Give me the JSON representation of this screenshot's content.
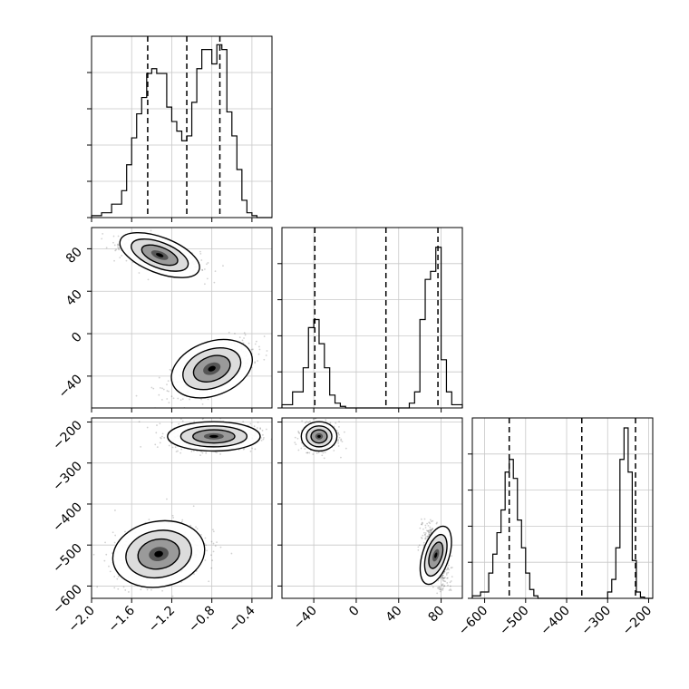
{
  "chart_data": {
    "type": "corner",
    "grid": true,
    "parameters": [
      {
        "range": [
          -2.0,
          -0.2
        ],
        "tick_labels": [
          "−2.0",
          "−1.6",
          "−1.2",
          "−0.8",
          "−0.4"
        ],
        "ticks": [
          -2.0,
          -1.6,
          -1.2,
          -0.8,
          -0.4
        ]
      },
      {
        "range": [
          -70,
          100
        ],
        "tick_labels": [
          "−40",
          "0",
          "40",
          "80"
        ],
        "ticks": [
          -40,
          0,
          40,
          80
        ]
      },
      {
        "range": [
          -630,
          -190
        ],
        "tick_labels": [
          "−600",
          "−500",
          "−400",
          "−300",
          "−200"
        ],
        "ticks": [
          -600,
          -500,
          -400,
          -300,
          -200
        ]
      }
    ],
    "histograms": [
      {
        "parameter": 0,
        "bin_edges": [
          -2.0,
          -1.9,
          -1.8,
          -1.7,
          -1.65,
          -1.6,
          -1.55,
          -1.5,
          -1.45,
          -1.4,
          -1.35,
          -1.3,
          -1.25,
          -1.2,
          -1.15,
          -1.1,
          -1.05,
          -1.0,
          -0.95,
          -0.9,
          -0.85,
          -0.8,
          -0.75,
          -0.7,
          -0.65,
          -0.6,
          -0.55,
          -0.5,
          -0.45,
          -0.4,
          -0.35,
          -0.3,
          -0.2
        ],
        "counts": [
          2,
          5,
          14,
          28,
          55,
          83,
          108,
          125,
          150,
          155,
          150,
          150,
          115,
          100,
          90,
          80,
          85,
          120,
          155,
          175,
          175,
          160,
          180,
          175,
          110,
          85,
          50,
          18,
          5,
          2,
          0,
          0
        ],
        "ylim": [
          0,
          185
        ],
        "quantile_lines": [
          -1.44,
          -1.05,
          -0.72
        ]
      },
      {
        "parameter": 1,
        "bin_edges": [
          -70,
          -60,
          -50,
          -45,
          -40,
          -35,
          -30,
          -25,
          -20,
          -15,
          -10,
          -5,
          0,
          40,
          50,
          55,
          60,
          65,
          70,
          75,
          80,
          85,
          90,
          100
        ],
        "counts": [
          2,
          10,
          25,
          50,
          55,
          40,
          25,
          8,
          3,
          1,
          0,
          0,
          0,
          0,
          3,
          10,
          55,
          80,
          85,
          100,
          30,
          10,
          2
        ],
        "ylim": [
          0,
          110
        ],
        "quantile_lines": [
          -39,
          28,
          77
        ]
      },
      {
        "parameter": 2,
        "bin_edges": [
          -630,
          -610,
          -590,
          -580,
          -570,
          -560,
          -550,
          -540,
          -530,
          -520,
          -510,
          -500,
          -490,
          -480,
          -470,
          -300,
          -290,
          -280,
          -270,
          -260,
          -250,
          -240,
          -230,
          -220,
          -210,
          -190
        ],
        "counts": [
          2,
          5,
          20,
          35,
          52,
          70,
          100,
          110,
          95,
          62,
          40,
          20,
          7,
          2,
          0,
          5,
          15,
          40,
          110,
          135,
          100,
          30,
          5,
          1,
          0
        ],
        "ylim": [
          0,
          140
        ],
        "quantile_lines": [
          -540,
          -363,
          -232
        ]
      }
    ],
    "scatter_panels": [
      {
        "x_param": 0,
        "y_param": 1,
        "clusters": [
          {
            "center": [
              -1.32,
              74
            ],
            "spread": [
              0.2,
              8
            ],
            "corr": -0.6
          },
          {
            "center": [
              -0.8,
              -33
            ],
            "spread": [
              0.2,
              12
            ],
            "corr": 0.6
          }
        ]
      },
      {
        "x_param": 0,
        "y_param": 2,
        "clusters": [
          {
            "center": [
              -0.78,
              -235
            ],
            "spread": [
              0.22,
              17
            ],
            "corr": 0.0
          },
          {
            "center": [
              -1.33,
              -522
            ],
            "spread": [
              0.22,
              38
            ],
            "corr": 0.3
          }
        ]
      },
      {
        "x_param": 1,
        "y_param": 2,
        "clusters": [
          {
            "center": [
              -35,
              -235
            ],
            "spread": [
              8,
              17
            ],
            "corr": 0.0
          },
          {
            "center": [
              75,
              -525
            ],
            "spread": [
              6,
              35
            ],
            "corr": -0.5
          }
        ]
      }
    ]
  }
}
